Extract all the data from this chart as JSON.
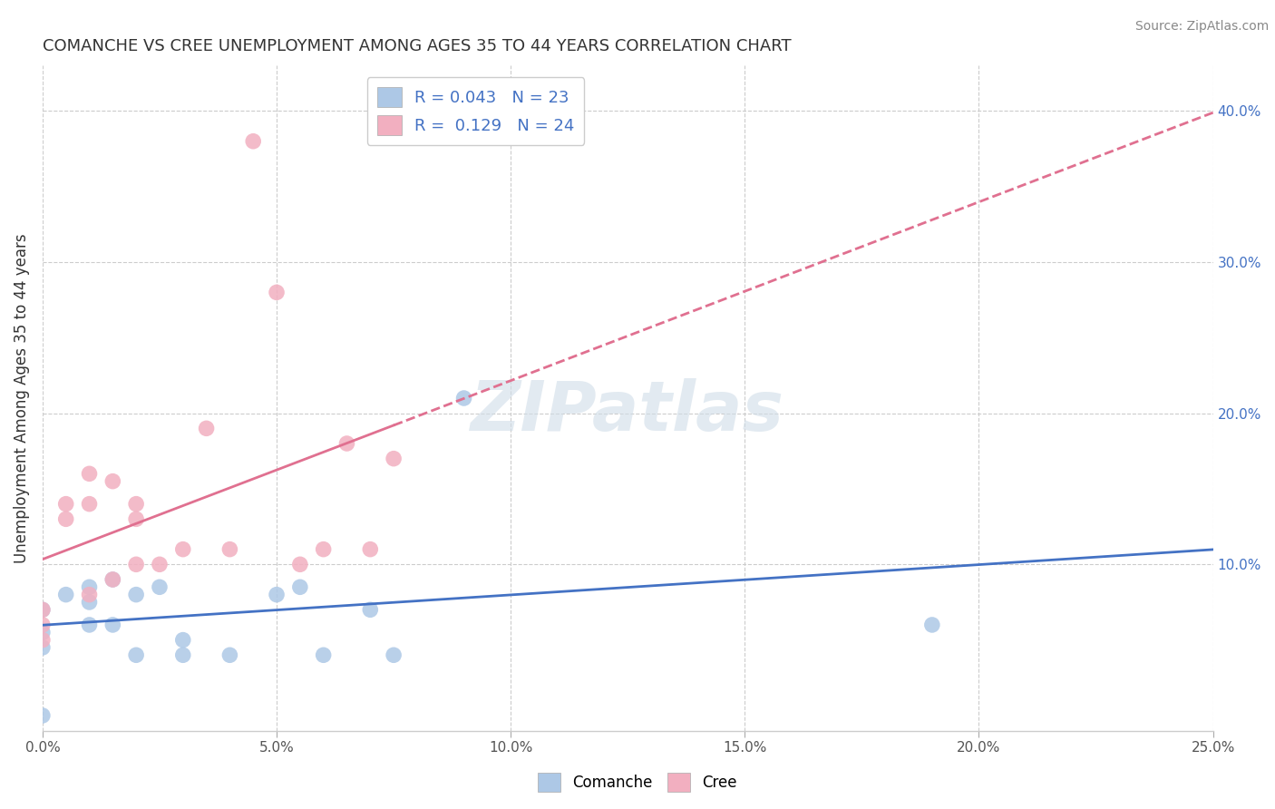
{
  "title": "COMANCHE VS CREE UNEMPLOYMENT AMONG AGES 35 TO 44 YEARS CORRELATION CHART",
  "source": "Source: ZipAtlas.com",
  "ylabel": "Unemployment Among Ages 35 to 44 years",
  "xlim": [
    0.0,
    0.25
  ],
  "ylim": [
    -0.01,
    0.43
  ],
  "xticks": [
    0.0,
    0.05,
    0.1,
    0.15,
    0.2,
    0.25
  ],
  "yticks": [
    0.1,
    0.2,
    0.3,
    0.4
  ],
  "ytick_labels": [
    "10.0%",
    "20.0%",
    "30.0%",
    "40.0%"
  ],
  "xtick_labels": [
    "0.0%",
    "5.0%",
    "10.0%",
    "15.0%",
    "20.0%",
    "25.0%"
  ],
  "comanche_x": [
    0.0,
    0.0,
    0.0,
    0.0,
    0.005,
    0.01,
    0.01,
    0.01,
    0.015,
    0.015,
    0.02,
    0.02,
    0.025,
    0.03,
    0.03,
    0.04,
    0.05,
    0.055,
    0.06,
    0.07,
    0.075,
    0.09,
    0.19
  ],
  "comanche_y": [
    0.07,
    0.055,
    0.045,
    0.0,
    0.08,
    0.085,
    0.075,
    0.06,
    0.09,
    0.06,
    0.08,
    0.04,
    0.085,
    0.04,
    0.05,
    0.04,
    0.08,
    0.085,
    0.04,
    0.07,
    0.04,
    0.21,
    0.06
  ],
  "cree_x": [
    0.0,
    0.0,
    0.0,
    0.005,
    0.005,
    0.01,
    0.01,
    0.01,
    0.015,
    0.015,
    0.02,
    0.02,
    0.02,
    0.025,
    0.03,
    0.035,
    0.04,
    0.045,
    0.05,
    0.055,
    0.06,
    0.065,
    0.07,
    0.075
  ],
  "cree_y": [
    0.07,
    0.06,
    0.05,
    0.14,
    0.13,
    0.16,
    0.14,
    0.08,
    0.155,
    0.09,
    0.14,
    0.13,
    0.1,
    0.1,
    0.11,
    0.19,
    0.11,
    0.38,
    0.28,
    0.1,
    0.11,
    0.18,
    0.11,
    0.17
  ],
  "comanche_color": "#adc8e6",
  "cree_color": "#f2afc0",
  "comanche_line_color": "#4472c4",
  "cree_line_color": "#e07090",
  "R_comanche": 0.043,
  "N_comanche": 23,
  "R_cree": 0.129,
  "N_cree": 24,
  "watermark": "ZIPatlas",
  "background_color": "#ffffff",
  "grid_color": "#cccccc"
}
